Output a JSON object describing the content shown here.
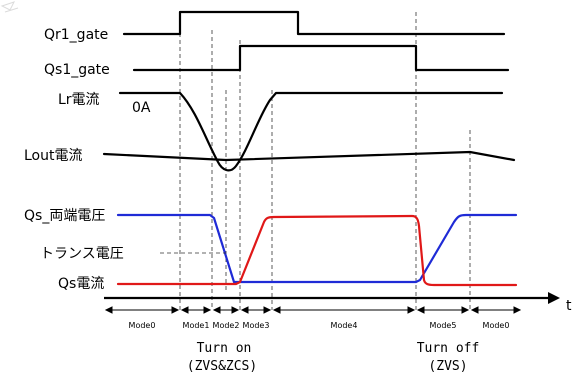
{
  "signals": {
    "qr1_gate": "Qr1_gate",
    "qs1_gate": "Qs1_gate",
    "lr_current": "Lr電流",
    "lr_zero": "0A",
    "lout_current": "Lout電流",
    "qs_voltage": "Qs_両端電圧",
    "transformer_voltage": "トランス電圧",
    "qs_current": "Qs電流"
  },
  "axis": {
    "time_label": "t"
  },
  "modes": [
    "Mode0",
    "Mode1",
    "Mode2",
    "Mode3",
    "Mode4",
    "Mode5",
    "Mode0"
  ],
  "events": {
    "turn_on": "Turn on",
    "turn_on_condition": "(ZVS&ZCS)",
    "turn_off": "Turn off",
    "turn_off_condition": "(ZVS)"
  },
  "colors": {
    "gate": "#000000",
    "qs_voltage": "#1f2bd6",
    "qs_current": "#e01818",
    "lr_current": "#000000",
    "lout_current": "#000000"
  }
}
